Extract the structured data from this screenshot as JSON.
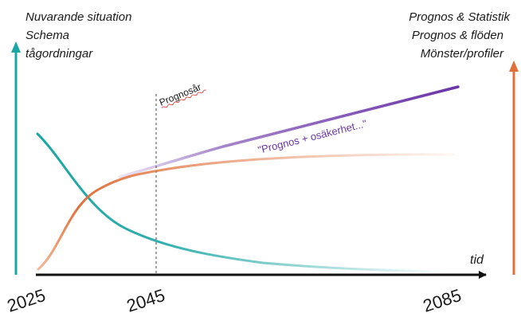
{
  "labels": {
    "left_top": [
      "Nuvarande situation",
      "Schema",
      "tågordningar"
    ],
    "right_top": [
      "Prognos & Statistik",
      "Prognos & flöden",
      "Mönster/profiler"
    ],
    "forecast_year": "Prognosår",
    "forecast_uncertainty": "\"Prognos + osäkerhet...\"",
    "x_axis_label": "tid"
  },
  "axis_ticks": [
    "2025",
    "2045",
    "2085"
  ],
  "colors": {
    "teal": "#1aa6a3",
    "orange": "#e0703a",
    "purple": "#6a35a8",
    "axis": "#111111",
    "dashed": "#444444"
  }
}
